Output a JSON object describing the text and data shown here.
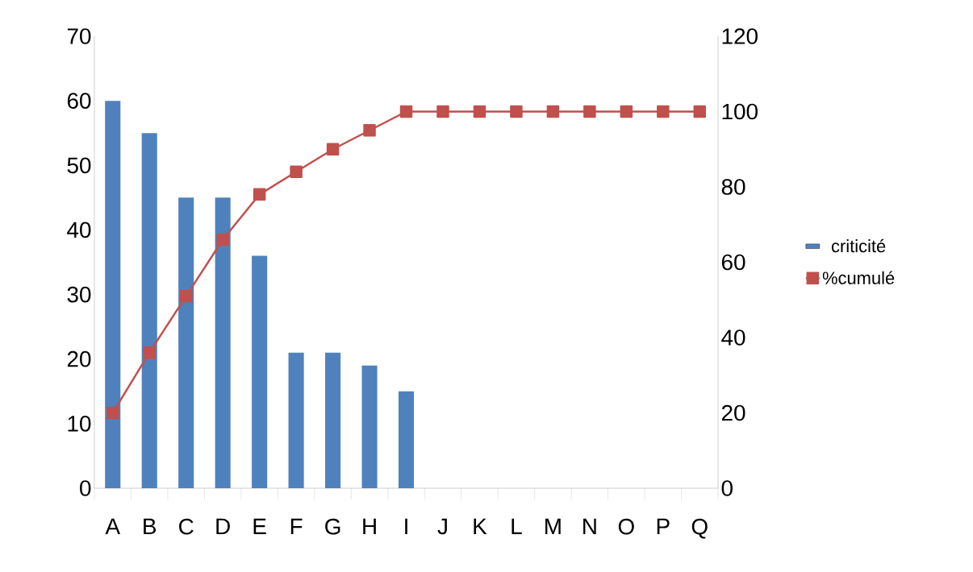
{
  "chart_data": {
    "type": "bar",
    "categories": [
      "A",
      "B",
      "C",
      "D",
      "E",
      "F",
      "G",
      "H",
      "I",
      "J",
      "K",
      "L",
      "M",
      "N",
      "O",
      "P",
      "Q"
    ],
    "series": [
      {
        "name": "criticité",
        "color": "#4f81bd",
        "values": [
          60,
          55,
          45,
          45,
          36,
          21,
          21,
          19,
          15,
          null,
          null,
          null,
          null,
          null,
          null,
          null,
          null
        ]
      },
      {
        "name": "%cumulé",
        "type": "line",
        "axis": "y2",
        "color": "#c0504d",
        "values": [
          20,
          36,
          51,
          66,
          78,
          84,
          90,
          95,
          100,
          100,
          100,
          100,
          100,
          100,
          100,
          100,
          100
        ]
      }
    ],
    "ylim": [
      0,
      70
    ],
    "yticks": [
      0,
      10,
      20,
      30,
      40,
      50,
      60,
      70
    ],
    "y2lim": [
      0,
      120
    ],
    "y2ticks": [
      0,
      20,
      40,
      60,
      80,
      100,
      120
    ],
    "legend": "right",
    "marker": "square",
    "grid": false
  }
}
